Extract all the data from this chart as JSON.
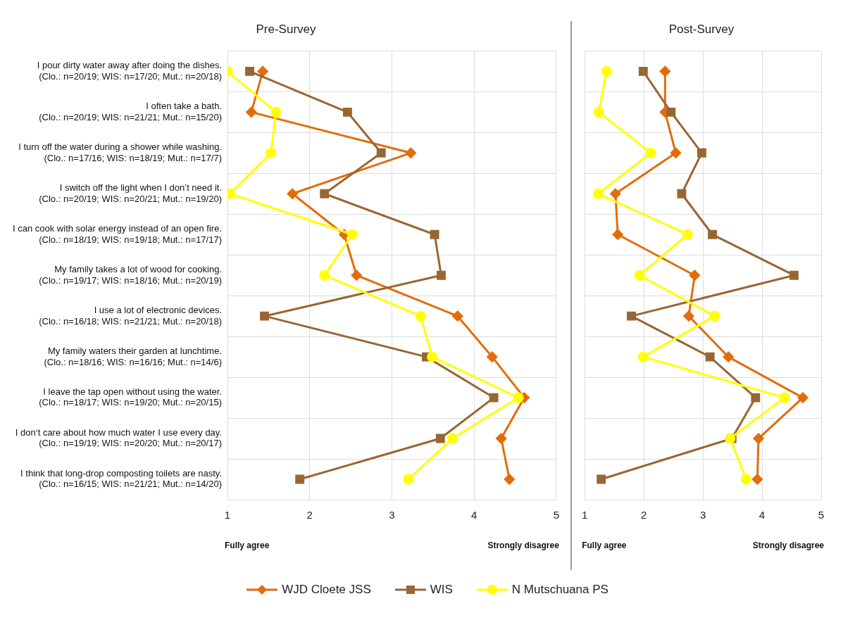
{
  "chart_data": [
    {
      "type": "line",
      "orientation": "horizontal",
      "title": "Pre-Survey",
      "categories": [
        "I pour dirty water away after doing the dishes.\n(Clo.: n=20/19; WIS: n=17/20; Mut.: n=20/18)",
        "I often take a bath.\n(Clo.: n=20/19; WIS: n=21/21; Mut.: n=15/20)",
        "I turn off the water during a shower while washing.\n(Clo.: n=17/16; WIS: n=18/19; Mut.: n=17/7)",
        "I switch off the light when I don’t need it.\n(Clo.: n=20/19; WIS: n=20/21; Mut.: n=19/20)",
        "I can cook with solar energy instead of an open fire.\n(Clo.: n=18/19; WIS: n=19/18; Mut.: n=17/17)",
        "My family takes a lot of wood for cooking.\n(Clo.: n=19/17; WIS: n=18/16; Mut.: n=20/19)",
        "I use a lot of electronic devices.\n(Clo.: n=16/18; WIS: n=21/21; Mut.: n=20/18)",
        "My family waters their garden at lunchtime.\n(Clo.: n=18/16; WIS: n=16/16; Mut.: n=14/6)",
        "I leave the tap open without using the water.\n(Clo.: n=18/17; WIS: n=19/20; Mut.: n=20/15)",
        "I don‘t care about how much water I use every day.\n(Clo.: n=19/19; WIS: n=20/20; Mut.: n=20/17)",
        "I think that long-drop composting toilets are nasty.\n(Clo.: n=16/15; WIS: n=21/21; Mut.: n=14/20)"
      ],
      "series": [
        {
          "name": "WJD Cloete JSS",
          "color": "#e36c0a",
          "marker": "diamond",
          "values": [
            1.43,
            1.29,
            3.23,
            1.79,
            2.42,
            2.57,
            3.8,
            4.22,
            4.61,
            4.33,
            4.43
          ]
        },
        {
          "name": "WIS",
          "color": "#996633",
          "marker": "square",
          "values": [
            1.27,
            2.46,
            2.87,
            2.18,
            3.52,
            3.6,
            1.45,
            3.42,
            4.24,
            3.59,
            1.88
          ]
        },
        {
          "name": "N Mutschuana PS",
          "color": "#ffff00",
          "marker": "circle",
          "values": [
            1.0,
            1.59,
            1.53,
            1.03,
            2.52,
            2.18,
            3.35,
            3.49,
            4.54,
            3.74,
            3.2
          ]
        }
      ],
      "xlim": [
        1,
        5
      ],
      "xticks": [
        1,
        2,
        3,
        4,
        5
      ],
      "grid": true,
      "legend": "bottom",
      "line_style": "solid",
      "annotations": [
        "Fully agree",
        "Strongly disagree"
      ]
    },
    {
      "type": "line",
      "orientation": "horizontal",
      "title": "Post-Survey",
      "categories": [
        null,
        null,
        null,
        null,
        null,
        null,
        null,
        null,
        null,
        null,
        null
      ],
      "series": [
        {
          "color": "#e36c0a",
          "marker": "diamond",
          "values": [
            2.36,
            2.36,
            2.54,
            1.52,
            1.56,
            2.86,
            2.76,
            3.43,
            4.69,
            3.94,
            3.92
          ]
        },
        {
          "color": "#996633",
          "marker": "square",
          "values": [
            1.99,
            2.46,
            2.98,
            2.64,
            3.16,
            4.54,
            1.79,
            3.12,
            3.89,
            3.49,
            1.28
          ]
        },
        {
          "color": "#ffff00",
          "marker": "circle",
          "values": [
            1.37,
            1.24,
            2.12,
            1.23,
            2.74,
            1.93,
            3.2,
            1.99,
            4.38,
            3.46,
            3.73
          ]
        }
      ],
      "xlim": [
        1,
        5
      ],
      "xticks": [
        1,
        2,
        3,
        4,
        5
      ],
      "grid": true,
      "tick_labels": "x",
      "line_style": "solid",
      "annotations": [
        "Fully agree",
        "Strongly disagree"
      ]
    }
  ]
}
